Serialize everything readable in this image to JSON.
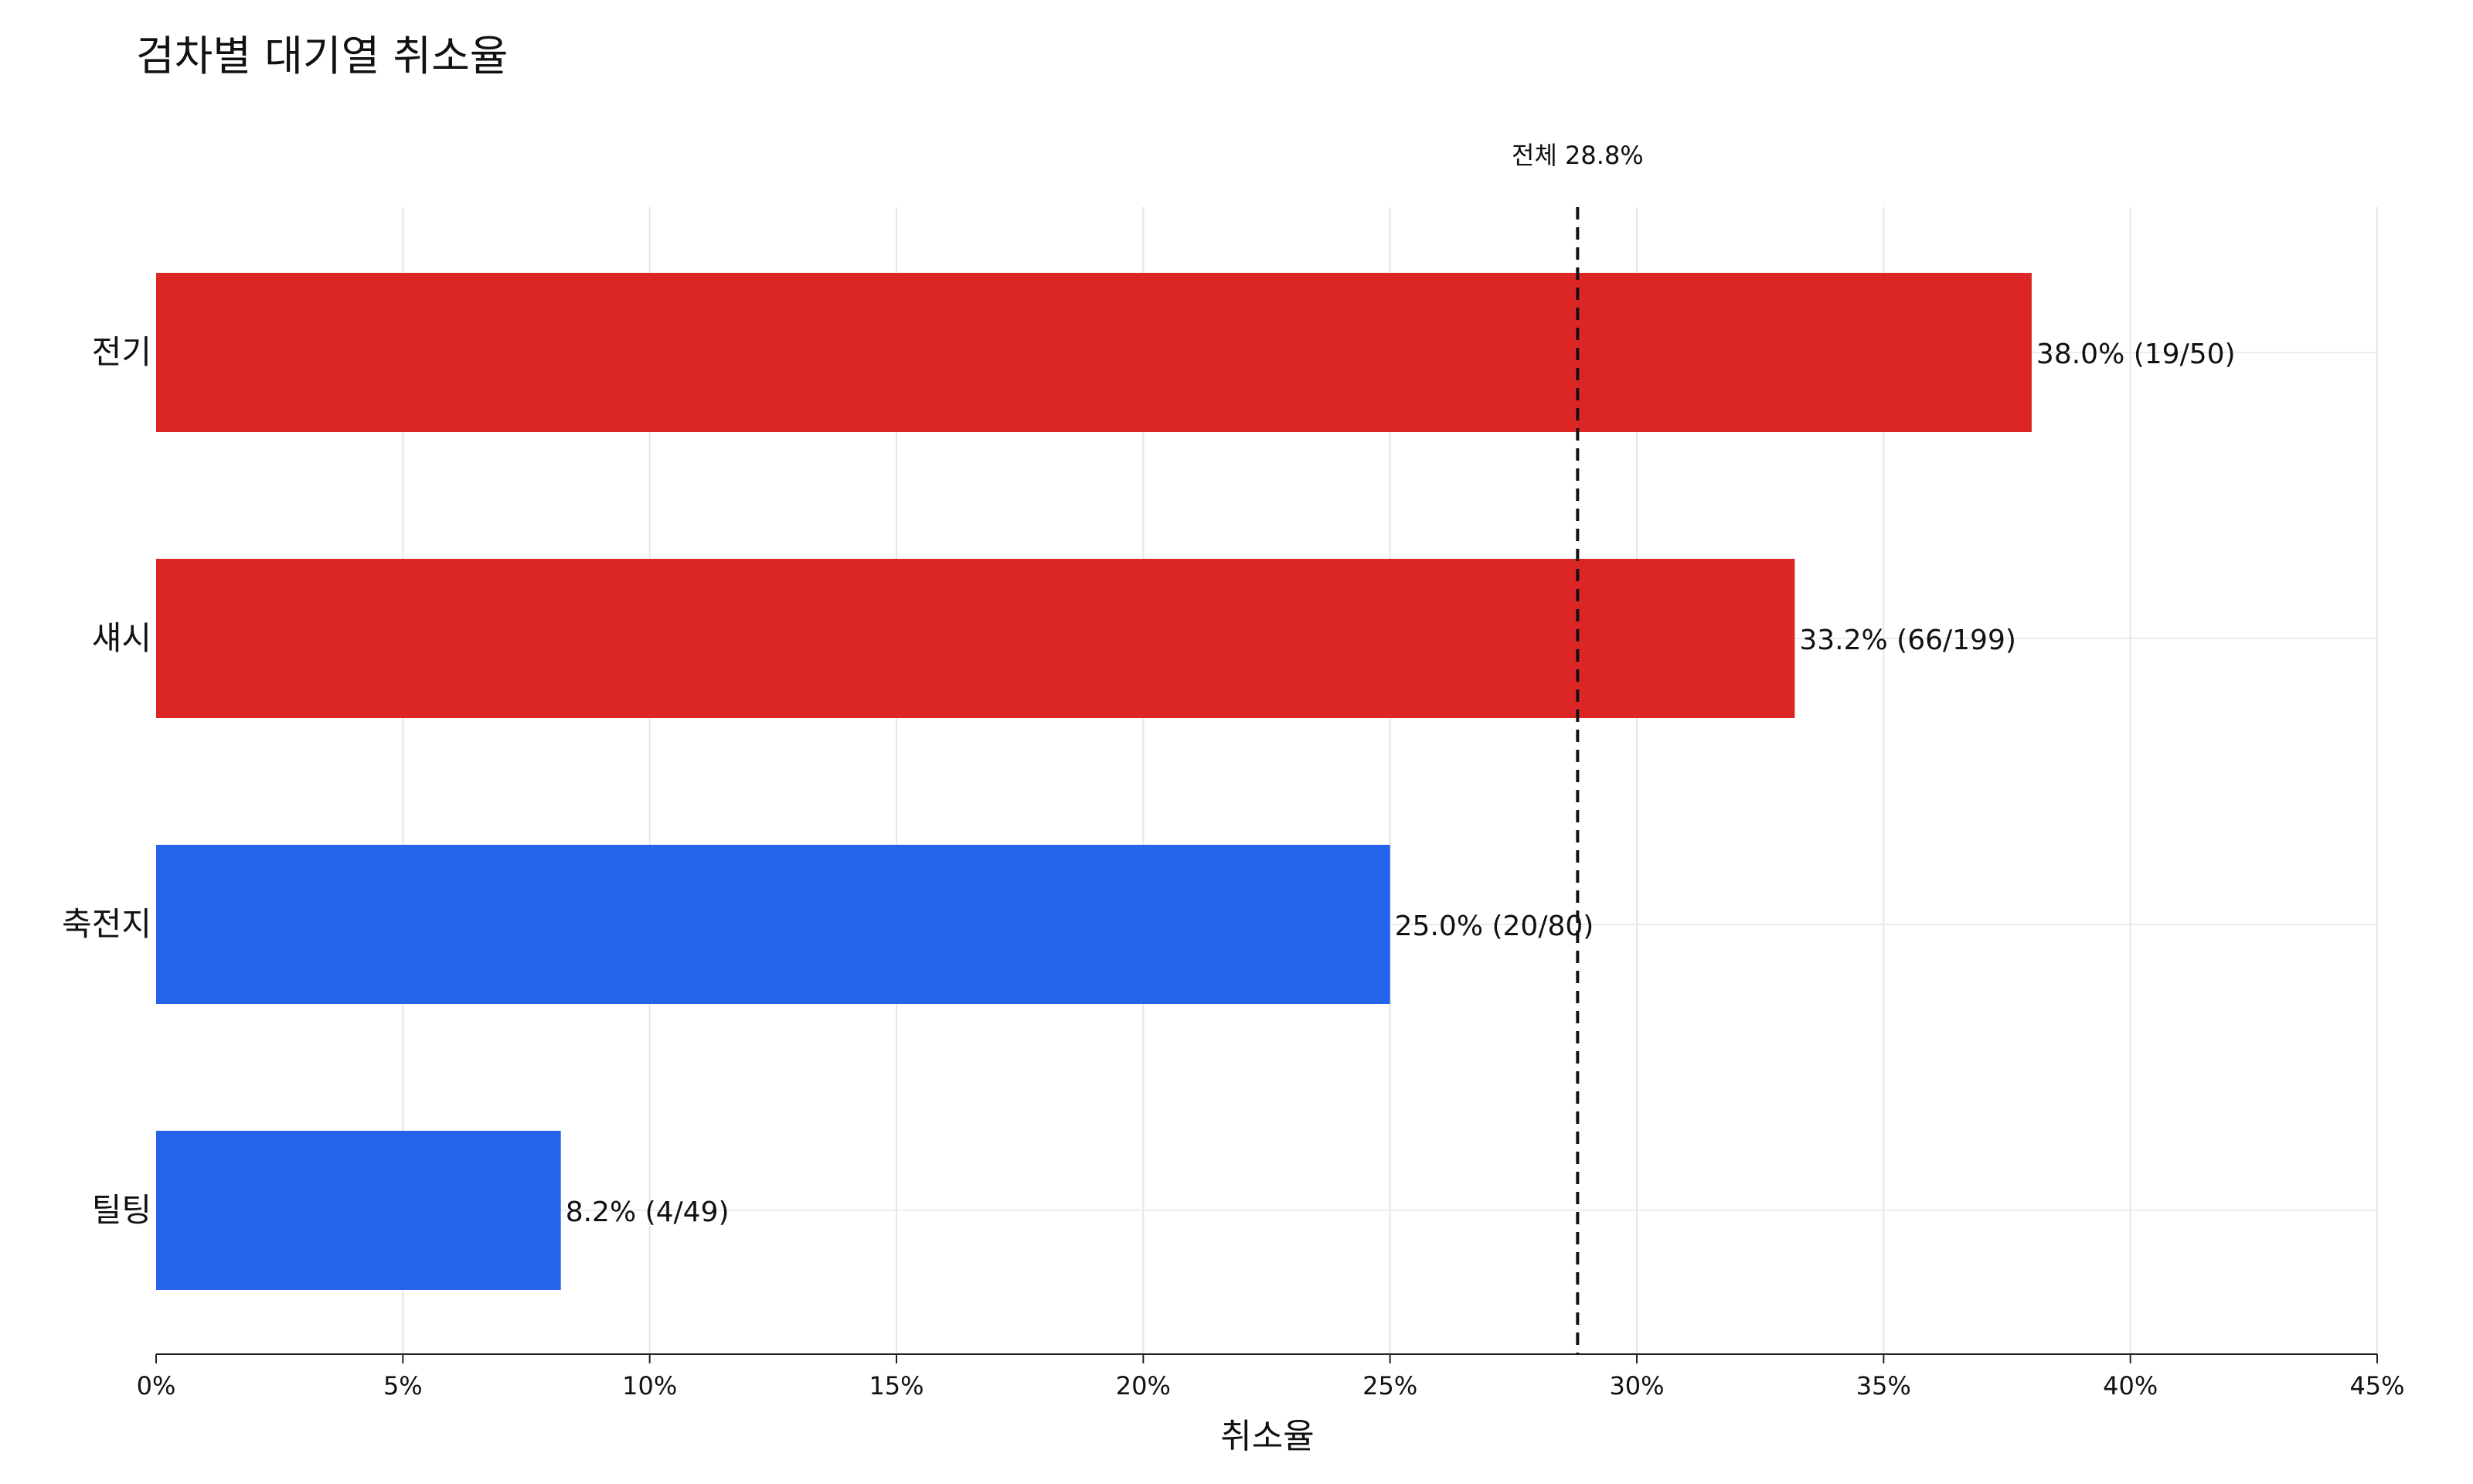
{
  "chart_data": {
    "type": "bar",
    "orientation": "horizontal",
    "title": "검차별 대기열 취소율",
    "xlabel": "취소율",
    "ylabel": "",
    "xlim": [
      0,
      45
    ],
    "x_ticks": [
      "0%",
      "5%",
      "10%",
      "15%",
      "20%",
      "25%",
      "30%",
      "35%",
      "40%",
      "45%"
    ],
    "grid": true,
    "categories": [
      "전기",
      "섀시",
      "축전지",
      "틸팅"
    ],
    "values": [
      38.0,
      33.2,
      25.0,
      8.2
    ],
    "value_labels": [
      "38.0%",
      "33.2%",
      "25.0%",
      "8.2%"
    ],
    "count_labels": [
      "(19/50)",
      "(66/199)",
      "(20/80)",
      "(4/49)"
    ],
    "bar_colors": [
      "#dc2626",
      "#dc2626",
      "#2563eb",
      "#2563eb"
    ],
    "reference_line": {
      "value": 28.8,
      "label": "전체 28.8%",
      "style": "dashed"
    }
  }
}
